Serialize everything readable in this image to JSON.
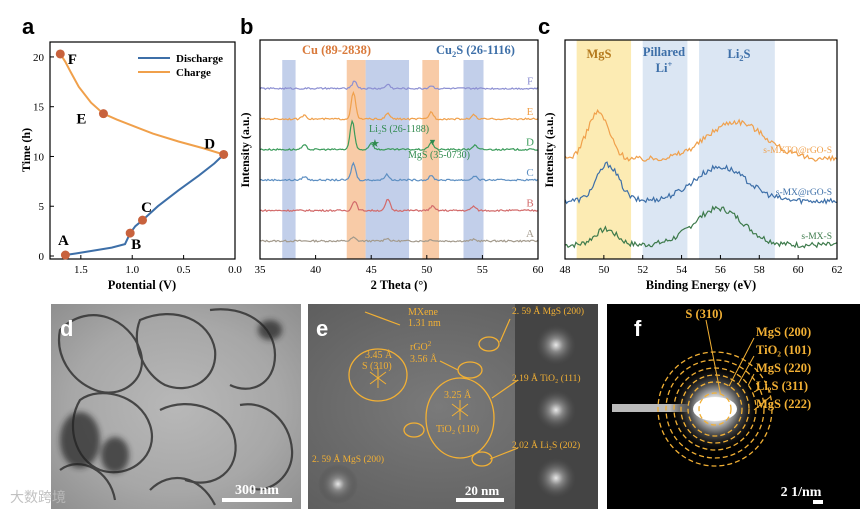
{
  "panel_letters": {
    "a": "a",
    "b": "b",
    "c": "c",
    "d": "d",
    "e": "e",
    "f": "f"
  },
  "colors": {
    "discharge": "#3d6fa8",
    "charge": "#f0a04b",
    "marker": "#c8623d",
    "cu_band": "#f6b98a",
    "cu2s_band": "#aebfe3",
    "mgs_band": "#fbe7a6",
    "li_band": "#d5e2f1"
  },
  "chart_data": [
    {
      "panel": "a",
      "type": "line",
      "xlabel": "Potential (V)",
      "ylabel": "Time (h)",
      "xlim": [
        1.8,
        0.0
      ],
      "ylim": [
        -0.3,
        21.5
      ],
      "xticks": [
        "1.5",
        "1.0",
        "0.5",
        "0.0"
      ],
      "xtick_values": [
        1.5,
        1.0,
        0.5,
        0.0
      ],
      "yticks": [
        "0",
        "5",
        "10",
        "15",
        "20"
      ],
      "ytick_values": [
        0,
        5,
        10,
        15,
        20
      ],
      "legend": [
        "Discharge",
        "Charge"
      ],
      "series": [
        {
          "name": "Discharge",
          "x": [
            1.65,
            1.55,
            1.4,
            1.2,
            1.07,
            1.02,
            0.97,
            0.9,
            0.75,
            0.55,
            0.35,
            0.2,
            0.11
          ],
          "y": [
            0.1,
            0.25,
            0.5,
            0.85,
            1.2,
            2.3,
            3.0,
            3.6,
            5.0,
            6.6,
            8.1,
            9.3,
            10.2
          ]
        },
        {
          "name": "Charge",
          "x": [
            0.11,
            0.3,
            0.55,
            0.8,
            1.0,
            1.15,
            1.28,
            1.4,
            1.52,
            1.6,
            1.65,
            1.7
          ],
          "y": [
            10.2,
            10.8,
            11.5,
            12.3,
            13.1,
            13.7,
            14.3,
            15.4,
            17.0,
            18.5,
            19.5,
            20.3
          ]
        }
      ],
      "points": [
        {
          "label": "A",
          "x": 1.65,
          "y": 0.1
        },
        {
          "label": "B",
          "x": 1.02,
          "y": 2.3
        },
        {
          "label": "C",
          "x": 0.9,
          "y": 3.6
        },
        {
          "label": "D",
          "x": 0.11,
          "y": 10.2
        },
        {
          "label": "E",
          "x": 1.28,
          "y": 14.3
        },
        {
          "label": "F",
          "x": 1.7,
          "y": 20.3
        }
      ]
    },
    {
      "panel": "b",
      "type": "line",
      "xlabel": "2 Theta (°)",
      "ylabel": "Intensity (a.u.)",
      "xlim": [
        35,
        60
      ],
      "xticks": [
        "35",
        "40",
        "45",
        "50",
        "55",
        "60"
      ],
      "xtick_values": [
        35,
        40,
        45,
        50,
        55,
        60
      ],
      "band_labels": {
        "cu": "Cu (89-2838)",
        "cu2s_main": "Cu",
        "cu2s_sub": "2",
        "cu2s_tail": "S (26-1116)"
      },
      "annotations": {
        "li2s": "Li₂S (26-1188)",
        "mgs": "MgS (35-0730)"
      },
      "bands": [
        {
          "range": [
            37.0,
            38.2
          ],
          "kind": "cu2s"
        },
        {
          "range": [
            42.8,
            44.5
          ],
          "kind": "cu"
        },
        {
          "range": [
            44.5,
            48.4
          ],
          "kind": "cu2s"
        },
        {
          "range": [
            49.6,
            51.1
          ],
          "kind": "cu"
        },
        {
          "range": [
            53.3,
            55.1
          ],
          "kind": "cu2s"
        }
      ],
      "series": [
        {
          "name": "A",
          "color": "#a39a8c",
          "offset": 0.0,
          "peaks": [
            [
              43.4,
              0.25
            ],
            [
              46.4,
              0.2
            ],
            [
              50.4,
              0.1
            ],
            [
              54.2,
              0.1
            ]
          ]
        },
        {
          "name": "B",
          "color": "#d26a6a",
          "offset": 1.0,
          "peaks": [
            [
              43.5,
              0.7
            ],
            [
              46.5,
              0.8
            ],
            [
              50.5,
              0.3
            ],
            [
              54.2,
              0.3
            ]
          ]
        },
        {
          "name": "C",
          "color": "#5d8fc2",
          "offset": 2.0,
          "peaks": [
            [
              39.0,
              0.25
            ],
            [
              43.4,
              1.2
            ],
            [
              46.4,
              0.4
            ],
            [
              50.4,
              0.3
            ],
            [
              54.3,
              0.3
            ]
          ]
        },
        {
          "name": "D",
          "color": "#3a9b5a",
          "offset": 3.0,
          "peaks": [
            [
              39.0,
              0.3
            ],
            [
              43.3,
              2.0
            ],
            [
              45.0,
              0.45
            ],
            [
              50.4,
              0.55
            ],
            [
              54.3,
              0.3
            ]
          ]
        },
        {
          "name": "E",
          "color": "#f0a04b",
          "offset": 4.0,
          "peaks": [
            [
              39.0,
              0.3
            ],
            [
              43.4,
              1.9
            ],
            [
              46.5,
              0.4
            ],
            [
              50.4,
              0.5
            ],
            [
              54.2,
              0.3
            ]
          ]
        },
        {
          "name": "F",
          "color": "#8c8fd2",
          "offset": 5.0,
          "peaks": [
            [
              43.5,
              0.55
            ],
            [
              46.5,
              0.3
            ],
            [
              50.4,
              0.2
            ]
          ]
        }
      ]
    },
    {
      "panel": "c",
      "type": "line",
      "xlabel": "Binding Energy (eV)",
      "ylabel": "Intensity (a.u.)",
      "xlim": [
        48,
        62
      ],
      "xticks": [
        "48",
        "50",
        "52",
        "54",
        "56",
        "58",
        "60",
        "62"
      ],
      "xtick_values": [
        48,
        50,
        52,
        54,
        56,
        58,
        60,
        62
      ],
      "bands": [
        {
          "range": [
            48.6,
            51.4
          ],
          "label": "MgS",
          "kind": "mgs"
        },
        {
          "range": [
            52.0,
            54.3
          ],
          "label": "Pillared Li+",
          "kind": "li"
        },
        {
          "range": [
            54.9,
            58.8
          ],
          "label": "Li₂S",
          "kind": "li"
        }
      ],
      "band_text": {
        "mgs": "MgS",
        "pillared": "Pillared",
        "li_plus": "Li",
        "li_sup": "+",
        "li2s_main": "Li",
        "li2s_sub": "2",
        "li2s_tail": "S"
      },
      "series": [
        {
          "name": "s-MX-S",
          "color": "#3d7a4b",
          "offset": 0.0,
          "peaks": [
            [
              50.1,
              0.6,
              0.8
            ],
            [
              55.9,
              1.4,
              1.8
            ]
          ]
        },
        {
          "name": "s-MX@rGO-S",
          "color": "#3d6fa8",
          "offset": 1.7,
          "peaks": [
            [
              50.2,
              1.4,
              0.8
            ],
            [
              56.0,
              1.3,
              1.9
            ]
          ]
        },
        {
          "name": "s-MXTO@rGO-S",
          "color": "#f0a04b",
          "offset": 3.3,
          "peaks": [
            [
              49.7,
              1.8,
              0.8
            ],
            [
              56.8,
              1.45,
              2.1
            ]
          ]
        }
      ]
    }
  ],
  "tem_d": {
    "scale": "300 nm"
  },
  "hrtem_e": {
    "scale": "20 nm",
    "labels": {
      "mxene_top": "MXene",
      "mxene_bottom": "1.31 nm",
      "rgo_top": "rGO",
      "rgo_bottom": "3.56 Å",
      "s_top": "3.45 Å",
      "s_bottom": "S (310)",
      "tio2_top": "3.25 Å",
      "tio2_bottom": "TiO₂ (110)",
      "mgs_left": "2. 59 Å MgS (200)",
      "fft1": "2. 59 Å MgS (200)",
      "fft2": "2.19 Å TiO₂ (111)",
      "fft3": "2.02 Å Li₂S (202)"
    }
  },
  "saed_f": {
    "scale": "2 1/nm",
    "rings": [
      "S (310)",
      "MgS (200)",
      "TiO₂ (101)",
      "MgS (220)",
      "Li₂S (311)",
      "MgS (222)"
    ]
  },
  "watermark": "大数跨境"
}
